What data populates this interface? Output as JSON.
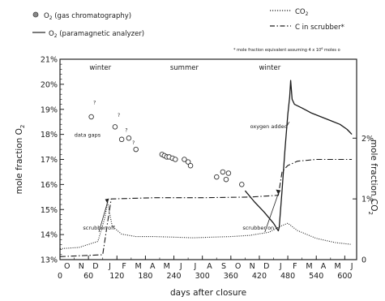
{
  "chart_data": {
    "type": "line",
    "legend": {
      "entries": [
        {
          "label_pre": "O",
          "label_sub": "2",
          "label_post": " (gas chromatography)",
          "symbol": "marker"
        },
        {
          "label_pre": "O",
          "label_sub": "2",
          "label_post": " (paramagnetic analyzer)",
          "symbol": "solid"
        },
        {
          "label_pre": "CO",
          "label_sub": "2",
          "label_post": "",
          "symbol": "dotted"
        },
        {
          "label_pre": "C  in  scrubber",
          "label_sub": "",
          "label_post": "*",
          "symbol": "dashdot"
        }
      ],
      "placement": "top"
    },
    "footnote": "* mole fraction equivalent  assuming 4 x 10",
    "footnote_sup": "6",
    "footnote_tail": " moles o",
    "xlabel": "days after closure",
    "ylabel_left_pre": "mole fraction  O",
    "ylabel_left_sub": "2",
    "ylabel_right": "mole fraction  CO",
    "ylabel_right_sub": "2",
    "x_ticks": [
      "0",
      "60",
      "120",
      "180",
      "240",
      "300",
      "360",
      "420",
      "480",
      "540",
      "600"
    ],
    "x_tick_values": [
      0,
      60,
      120,
      180,
      240,
      300,
      360,
      420,
      480,
      540,
      600
    ],
    "month_labels": [
      "O",
      "N",
      "D",
      "J",
      "F",
      "M",
      "A",
      "M",
      "J",
      "J",
      "A",
      "S",
      "O",
      "N",
      "D",
      "J",
      "F",
      "M",
      "A",
      "M",
      "J"
    ],
    "y_left_ticks": [
      "13%",
      "14%",
      "15%",
      "16%",
      "17%",
      "18%",
      "19%",
      "20%",
      "21%"
    ],
    "y_left_values": [
      13,
      14,
      15,
      16,
      17,
      18,
      19,
      20,
      21
    ],
    "y_right_ticks": [
      "0",
      "1%",
      "2%"
    ],
    "y_right_values": [
      0,
      1,
      2
    ],
    "xlim": [
      0,
      625
    ],
    "ylim_left": [
      13,
      21
    ],
    "ylim_right": [
      0,
      3.3
    ],
    "season_labels": [
      {
        "text": "winter",
        "x": 85
      },
      {
        "text": "summer",
        "x": 262
      },
      {
        "text": "winter",
        "x": 442
      }
    ],
    "annotations": [
      {
        "id": "data-gaps",
        "text": "data gaps",
        "x": 58,
        "y": 17.9
      },
      {
        "id": "oxygen-added",
        "text": "oxygen added",
        "x": 440,
        "y": 18.25
      },
      {
        "id": "scrubber-off",
        "text": "scrubber off",
        "x": 82,
        "y": 14.2
      },
      {
        "id": "scrubber-on",
        "text": "scrubber on",
        "x": 418,
        "y": 14.2
      }
    ],
    "series": [
      {
        "name": "O2 (gas chromatography)",
        "kind": "marker",
        "axis": "left",
        "points": [
          {
            "x": 66,
            "y": 18.7
          },
          {
            "x": 116,
            "y": 18.3
          },
          {
            "x": 130,
            "y": 17.8
          },
          {
            "x": 145,
            "y": 17.85
          },
          {
            "x": 160,
            "y": 17.4
          },
          {
            "x": 215,
            "y": 17.2
          },
          {
            "x": 220,
            "y": 17.15
          },
          {
            "x": 225,
            "y": 17.1
          },
          {
            "x": 230,
            "y": 17.1
          },
          {
            "x": 237,
            "y": 17.05
          },
          {
            "x": 243,
            "y": 17.0
          },
          {
            "x": 262,
            "y": 17.0
          },
          {
            "x": 270,
            "y": 16.9
          },
          {
            "x": 275,
            "y": 16.75
          },
          {
            "x": 330,
            "y": 16.3
          },
          {
            "x": 343,
            "y": 16.5
          },
          {
            "x": 350,
            "y": 16.2
          },
          {
            "x": 355,
            "y": 16.45
          },
          {
            "x": 383,
            "y": 16.0
          }
        ],
        "flagged_points": [
          {
            "x": 73,
            "y": 19.2
          },
          {
            "x": 124,
            "y": 18.7
          },
          {
            "x": 140,
            "y": 18.1
          },
          {
            "x": 155,
            "y": 17.6
          }
        ]
      },
      {
        "name": "O2 (paramagnetic analyzer)",
        "kind": "solid",
        "axis": "left",
        "points": [
          {
            "x": 390,
            "y": 15.75
          },
          {
            "x": 410,
            "y": 15.3
          },
          {
            "x": 430,
            "y": 14.9
          },
          {
            "x": 450,
            "y": 14.45
          },
          {
            "x": 460,
            "y": 14.15
          },
          {
            "x": 462,
            "y": 14.3
          },
          {
            "x": 468,
            "y": 15.8
          },
          {
            "x": 474,
            "y": 17.4
          },
          {
            "x": 480,
            "y": 18.8
          },
          {
            "x": 484,
            "y": 19.5
          },
          {
            "x": 486,
            "y": 20.15
          },
          {
            "x": 489,
            "y": 19.4
          },
          {
            "x": 494,
            "y": 19.2
          },
          {
            "x": 510,
            "y": 19.05
          },
          {
            "x": 530,
            "y": 18.85
          },
          {
            "x": 550,
            "y": 18.7
          },
          {
            "x": 570,
            "y": 18.55
          },
          {
            "x": 590,
            "y": 18.4
          },
          {
            "x": 605,
            "y": 18.2
          },
          {
            "x": 615,
            "y": 18.0
          }
        ]
      },
      {
        "name": "CO2",
        "kind": "dotted",
        "axis": "right",
        "points": [
          {
            "x": 0,
            "y": 0.18
          },
          {
            "x": 40,
            "y": 0.2
          },
          {
            "x": 80,
            "y": 0.3
          },
          {
            "x": 95,
            "y": 0.7
          },
          {
            "x": 100,
            "y": 0.95
          },
          {
            "x": 110,
            "y": 0.55
          },
          {
            "x": 130,
            "y": 0.42
          },
          {
            "x": 160,
            "y": 0.38
          },
          {
            "x": 200,
            "y": 0.38
          },
          {
            "x": 240,
            "y": 0.37
          },
          {
            "x": 280,
            "y": 0.36
          },
          {
            "x": 320,
            "y": 0.37
          },
          {
            "x": 360,
            "y": 0.38
          },
          {
            "x": 400,
            "y": 0.4
          },
          {
            "x": 440,
            "y": 0.45
          },
          {
            "x": 465,
            "y": 0.55
          },
          {
            "x": 480,
            "y": 0.6
          },
          {
            "x": 500,
            "y": 0.48
          },
          {
            "x": 540,
            "y": 0.35
          },
          {
            "x": 580,
            "y": 0.28
          },
          {
            "x": 615,
            "y": 0.25
          }
        ]
      },
      {
        "name": "C in scrubber",
        "kind": "dashdot",
        "axis": "right",
        "points": [
          {
            "x": 0,
            "y": 0.05
          },
          {
            "x": 90,
            "y": 0.08
          },
          {
            "x": 100,
            "y": 0.6
          },
          {
            "x": 108,
            "y": 1.0
          },
          {
            "x": 200,
            "y": 1.02
          },
          {
            "x": 300,
            "y": 1.02
          },
          {
            "x": 400,
            "y": 1.03
          },
          {
            "x": 460,
            "y": 1.06
          },
          {
            "x": 468,
            "y": 1.45
          },
          {
            "x": 480,
            "y": 1.55
          },
          {
            "x": 500,
            "y": 1.62
          },
          {
            "x": 540,
            "y": 1.65
          },
          {
            "x": 615,
            "y": 1.65
          }
        ]
      }
    ]
  }
}
